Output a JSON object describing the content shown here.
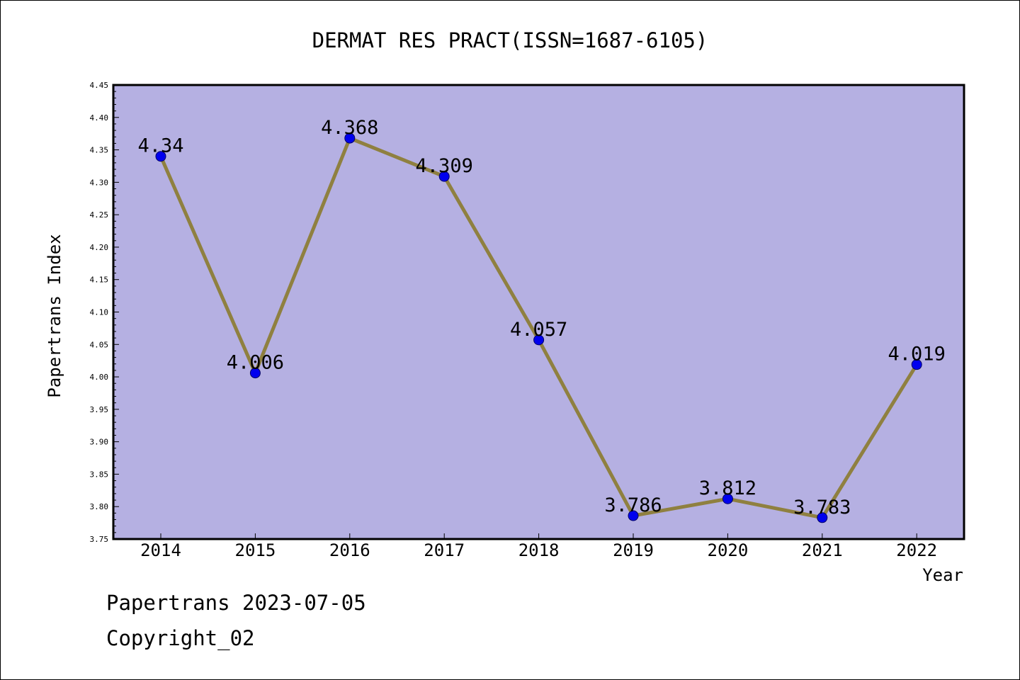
{
  "footer": {
    "date_line": "Papertrans 2023-07-05",
    "copyright_line": "Copyright_02"
  },
  "chart_data": {
    "type": "line",
    "title": "DERMAT RES PRACT(ISSN=1687-6105)",
    "xlabel": "Year",
    "ylabel": "Papertrans Index",
    "categories": [
      "2014",
      "2015",
      "2016",
      "2017",
      "2018",
      "2019",
      "2020",
      "2021",
      "2022"
    ],
    "series": [
      {
        "values": [
          4.34,
          4.006,
          4.368,
          4.309,
          4.057,
          3.786,
          3.812,
          3.783,
          4.019
        ],
        "labels": [
          "4.34",
          "4.006",
          "4.368",
          "4.309",
          "4.057",
          "3.786",
          "3.812",
          "3.783",
          "4.019"
        ]
      }
    ],
    "ylim": [
      3.75,
      4.45
    ],
    "yticks": [
      "3.75",
      "3.80",
      "3.85",
      "3.90",
      "3.95",
      "4.00",
      "4.05",
      "4.10",
      "4.15",
      "4.20",
      "4.25",
      "4.30",
      "4.35",
      "4.40",
      "4.45"
    ],
    "grid": false,
    "legend": "none",
    "colors": {
      "plot_background": "#b5b0e2",
      "line": "#8f8040",
      "marker": "#0000ee",
      "marker_edge": "#000066"
    }
  }
}
